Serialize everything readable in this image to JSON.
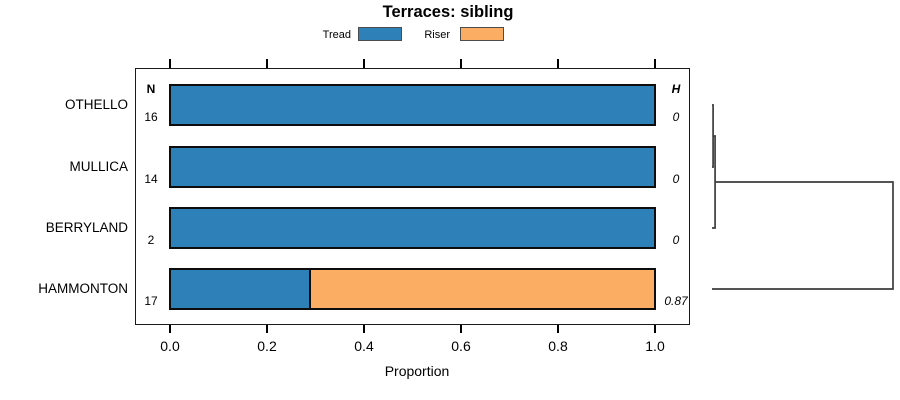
{
  "chart": {
    "title": "Terraces: sibling",
    "n_header": "N",
    "h_header": "H"
  },
  "chart_data": {
    "type": "bar",
    "orientation": "horizontal",
    "stacked": true,
    "title": "Terraces: sibling",
    "xlabel": "Proportion",
    "xlim": [
      0.0,
      1.05
    ],
    "xticks": [
      "0.0",
      "0.2",
      "0.4",
      "0.6",
      "0.8",
      "1.0"
    ],
    "xtick_values": [
      0.0,
      0.2,
      0.4,
      0.6,
      0.8,
      1.0
    ],
    "grid": false,
    "legend_position": "top",
    "categories": [
      "OTHELLO",
      "MULLICA",
      "BERRYLAND",
      "HAMMONTON"
    ],
    "series": [
      {
        "name": "Tread",
        "color": "#2e80b9",
        "values": [
          1.0,
          1.0,
          1.0,
          0.29
        ]
      },
      {
        "name": "Riser",
        "color": "#fbae63",
        "values": [
          0.0,
          0.0,
          0.0,
          0.71
        ]
      }
    ],
    "n_values": [
      "16",
      "14",
      "2",
      "17"
    ],
    "h_values": [
      "0",
      "0",
      "0",
      "0.87"
    ],
    "dendrogram": {
      "leaves": [
        "OTHELLO",
        "MULLICA",
        "BERRYLAND",
        "HAMMONTON"
      ],
      "merges": [
        {
          "a": "OTHELLO",
          "b": "MULLICA",
          "height": 0.006
        },
        {
          "a": "merge0",
          "b": "BERRYLAND",
          "height": 0.017
        },
        {
          "a": "merge1",
          "b": "HAMMONTON",
          "height": 1.0
        }
      ]
    }
  },
  "colors": {
    "tread": "#2e80b9",
    "riser": "#fbae63",
    "bar_border": "#0d0d0d",
    "axis": "#000000",
    "dendrogram_line": "#3d3d3d",
    "swatch_border": "#4d4d4d"
  }
}
